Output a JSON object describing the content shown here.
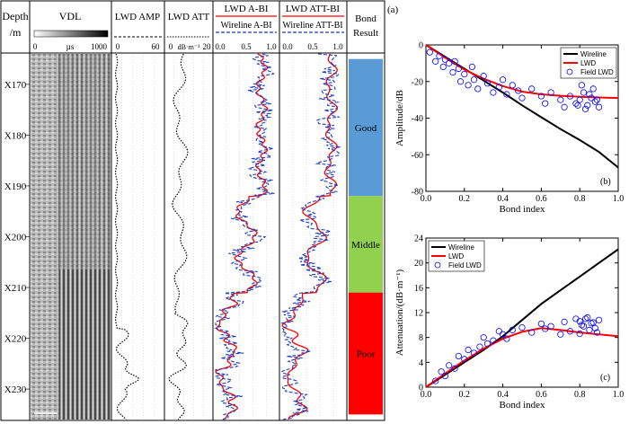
{
  "log": {
    "header": {
      "depth": "Depth",
      "depth_unit": "/m",
      "vdl": "VDL",
      "vdl_scale": [
        "0",
        "µs",
        "1000"
      ],
      "amp": "LWD AMP",
      "amp_scale": [
        "0",
        "60"
      ],
      "att": "LWD ATT",
      "att_scale": [
        "0",
        "dB·m⁻¹",
        "20"
      ],
      "abi": "LWD A-BI",
      "abi_sub": "Wireline A-BI",
      "abi_scale": [
        "0.0",
        "0.5",
        "1.0"
      ],
      "attbi": "LWD ATT-BI",
      "attbi_sub": "Wireline ATT-BI",
      "attbi_scale": [
        "0.0",
        "0.5",
        "1.0"
      ],
      "bond": "Bond",
      "bond_sub": "Result"
    },
    "depths": [
      "X170",
      "X180",
      "X190",
      "X200",
      "X210",
      "X220",
      "X230"
    ],
    "bond_zones": [
      {
        "label": "Good",
        "color": "#5b9bd5",
        "from": 165,
        "to": 192
      },
      {
        "label": "Middle",
        "color": "#92d050",
        "from": 192,
        "to": 211
      },
      {
        "label": "Poor",
        "color": "#ff0000",
        "from": 211,
        "to": 235
      }
    ]
  },
  "chart_data": [
    {
      "type": "line",
      "panel": "(a)",
      "panel_label": "(b)",
      "xlabel": "Bond index",
      "ylabel": "Amplitude/dB",
      "xlim": [
        0,
        1.0
      ],
      "ylim": [
        -80,
        0
      ],
      "xticks": [
        "0.0",
        "0.2",
        "0.4",
        "0.6",
        "0.8",
        "1.0"
      ],
      "yticks": [
        "0",
        "-20",
        "-40",
        "-60",
        "-80"
      ],
      "legend": "top-right",
      "series": [
        {
          "name": "Wireline",
          "color": "#000000",
          "x": [
            0,
            0.1,
            0.2,
            0.3,
            0.4,
            0.5,
            0.6,
            0.7,
            0.8,
            0.9,
            1.0
          ],
          "y": [
            0,
            -6.5,
            -13,
            -19.5,
            -26,
            -33,
            -39.5,
            -46,
            -52,
            -58.5,
            -67
          ]
        },
        {
          "name": "LWD",
          "color": "#ff0000",
          "x": [
            0,
            0.1,
            0.2,
            0.3,
            0.4,
            0.5,
            0.6,
            0.7,
            0.8,
            0.9,
            1.0
          ],
          "y": [
            0,
            -7,
            -13.5,
            -18.5,
            -22.5,
            -25.5,
            -27,
            -27.8,
            -28.3,
            -28.7,
            -29
          ]
        },
        {
          "name": "Field LWD",
          "color": "#0000ff",
          "marker": "circle",
          "x": [
            0.02,
            0.05,
            0.07,
            0.09,
            0.1,
            0.12,
            0.14,
            0.15,
            0.17,
            0.18,
            0.2,
            0.22,
            0.24,
            0.25,
            0.27,
            0.3,
            0.32,
            0.35,
            0.38,
            0.4,
            0.42,
            0.45,
            0.48,
            0.5,
            0.55,
            0.6,
            0.62,
            0.65,
            0.7,
            0.72,
            0.75,
            0.78,
            0.8,
            0.82,
            0.84,
            0.86,
            0.88,
            0.9,
            0.81,
            0.85,
            0.87,
            0.83,
            0.89,
            0.79
          ],
          "y": [
            -4,
            -9,
            -6,
            -12,
            -8,
            -10,
            -15,
            -9,
            -13,
            -20,
            -16,
            -22,
            -12,
            -19,
            -24,
            -17,
            -21,
            -26,
            -23,
            -19,
            -27,
            -22,
            -25,
            -29,
            -24,
            -28,
            -32,
            -26,
            -30,
            -34,
            -28,
            -32,
            -30,
            -26,
            -33,
            -29,
            -31,
            -34,
            -22,
            -27,
            -24,
            -35,
            -30,
            -33
          ]
        }
      ]
    },
    {
      "type": "line",
      "panel_label": "(c)",
      "xlabel": "Bond index",
      "ylabel": "Attenuation/(dB·m⁻¹)",
      "xlim": [
        0,
        1.0
      ],
      "ylim": [
        0,
        24
      ],
      "xticks": [
        "0.0",
        "0.2",
        "0.4",
        "0.6",
        "0.8",
        "1.0"
      ],
      "yticks": [
        "0",
        "4",
        "8",
        "12",
        "16",
        "20",
        "24"
      ],
      "legend": "top-left",
      "series": [
        {
          "name": "Wireline",
          "color": "#000000",
          "x": [
            0,
            0.1,
            0.2,
            0.3,
            0.4,
            0.5,
            0.6,
            0.7,
            0.8,
            0.9,
            1.0
          ],
          "y": [
            0,
            2,
            4,
            6,
            8.2,
            10.8,
            13.4,
            15.6,
            17.8,
            20,
            22.2
          ]
        },
        {
          "name": "LWD",
          "color": "#ff0000",
          "x": [
            0,
            0.1,
            0.2,
            0.3,
            0.4,
            0.5,
            0.6,
            0.7,
            0.8,
            0.9,
            1.0
          ],
          "y": [
            0,
            2.2,
            4.3,
            6.2,
            7.8,
            8.9,
            9.5,
            9.2,
            8.8,
            8.5,
            8.2
          ]
        },
        {
          "name": "Field LWD",
          "color": "#0000ff",
          "marker": "circle",
          "x": [
            0.05,
            0.08,
            0.1,
            0.12,
            0.15,
            0.17,
            0.2,
            0.22,
            0.25,
            0.28,
            0.3,
            0.32,
            0.35,
            0.38,
            0.4,
            0.42,
            0.45,
            0.5,
            0.55,
            0.6,
            0.62,
            0.65,
            0.7,
            0.72,
            0.75,
            0.78,
            0.8,
            0.82,
            0.84,
            0.86,
            0.88,
            0.9,
            0.8,
            0.83,
            0.85,
            0.87,
            0.89,
            0.81
          ],
          "y": [
            1,
            2.5,
            1.8,
            3.5,
            3,
            5,
            4.5,
            6,
            5.5,
            6.5,
            8,
            7,
            7.5,
            9,
            8.5,
            7.8,
            9.2,
            9.6,
            8.8,
            10.2,
            9.4,
            9.8,
            8.5,
            10.5,
            9,
            11,
            10.6,
            9.8,
            11.2,
            10.3,
            9.5,
            10.8,
            8.6,
            11,
            9.2,
            10.4,
            8.8,
            10
          ]
        }
      ]
    }
  ]
}
